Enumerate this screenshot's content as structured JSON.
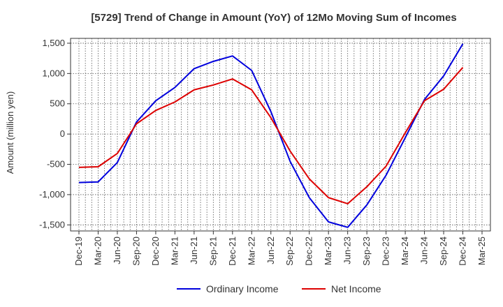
{
  "chart_data": {
    "type": "line",
    "title": "[5729]  Trend of Change in Amount (YoY) of 12Mo Moving Sum of Incomes",
    "xlabel": "",
    "ylabel": "Amount (million yen)",
    "ylim": [
      -1600,
      1580
    ],
    "yticks": [
      -1500,
      -1000,
      -500,
      0,
      500,
      1000,
      1500
    ],
    "ytick_labels": [
      "-1,500",
      "-1,000",
      "-500",
      "0",
      "500",
      "1,000",
      "1,500"
    ],
    "categories": [
      "Dec-19",
      "Mar-20",
      "Jun-20",
      "Sep-20",
      "Dec-20",
      "Mar-21",
      "Jun-21",
      "Sep-21",
      "Dec-21",
      "Mar-22",
      "Jun-22",
      "Sep-22",
      "Dec-22",
      "Mar-23",
      "Jun-23",
      "Sep-23",
      "Dec-23",
      "Mar-24",
      "Jun-24",
      "Sep-24",
      "Dec-24",
      "Mar-25"
    ],
    "grid": true,
    "legend_position": "bottom-center",
    "series": [
      {
        "name": "Ordinary Income",
        "color": "#0000dd",
        "values": [
          -800,
          -790,
          -470,
          200,
          550,
          770,
          1080,
          1200,
          1290,
          1050,
          370,
          -450,
          -1050,
          -1450,
          -1540,
          -1170,
          -680,
          -60,
          570,
          960,
          1490,
          null
        ]
      },
      {
        "name": "Net Income",
        "color": "#dd0000",
        "values": [
          -550,
          -540,
          -320,
          170,
          390,
          530,
          730,
          810,
          910,
          730,
          270,
          -280,
          -740,
          -1050,
          -1150,
          -870,
          -530,
          20,
          550,
          740,
          1100,
          null
        ]
      }
    ]
  }
}
